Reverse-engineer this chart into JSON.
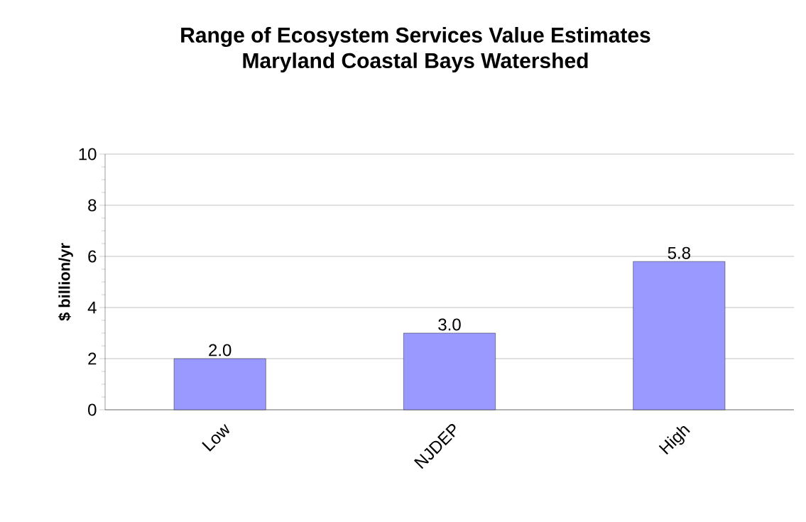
{
  "chart_data": {
    "type": "bar",
    "title": "Range of Ecosystem Services Value Estimates\nMaryland Coastal Bays Watershed",
    "ylabel": "$ billion/yr",
    "categories": [
      "Low",
      "NJDEP",
      "High"
    ],
    "values": [
      2.0,
      3.0,
      5.8
    ],
    "value_labels": [
      "2.0",
      "3.0",
      "5.8"
    ],
    "color": "#9999ff",
    "ylim": [
      0,
      10
    ],
    "yticks": [
      0,
      2,
      4,
      6,
      8,
      10
    ],
    "grid": "y"
  }
}
